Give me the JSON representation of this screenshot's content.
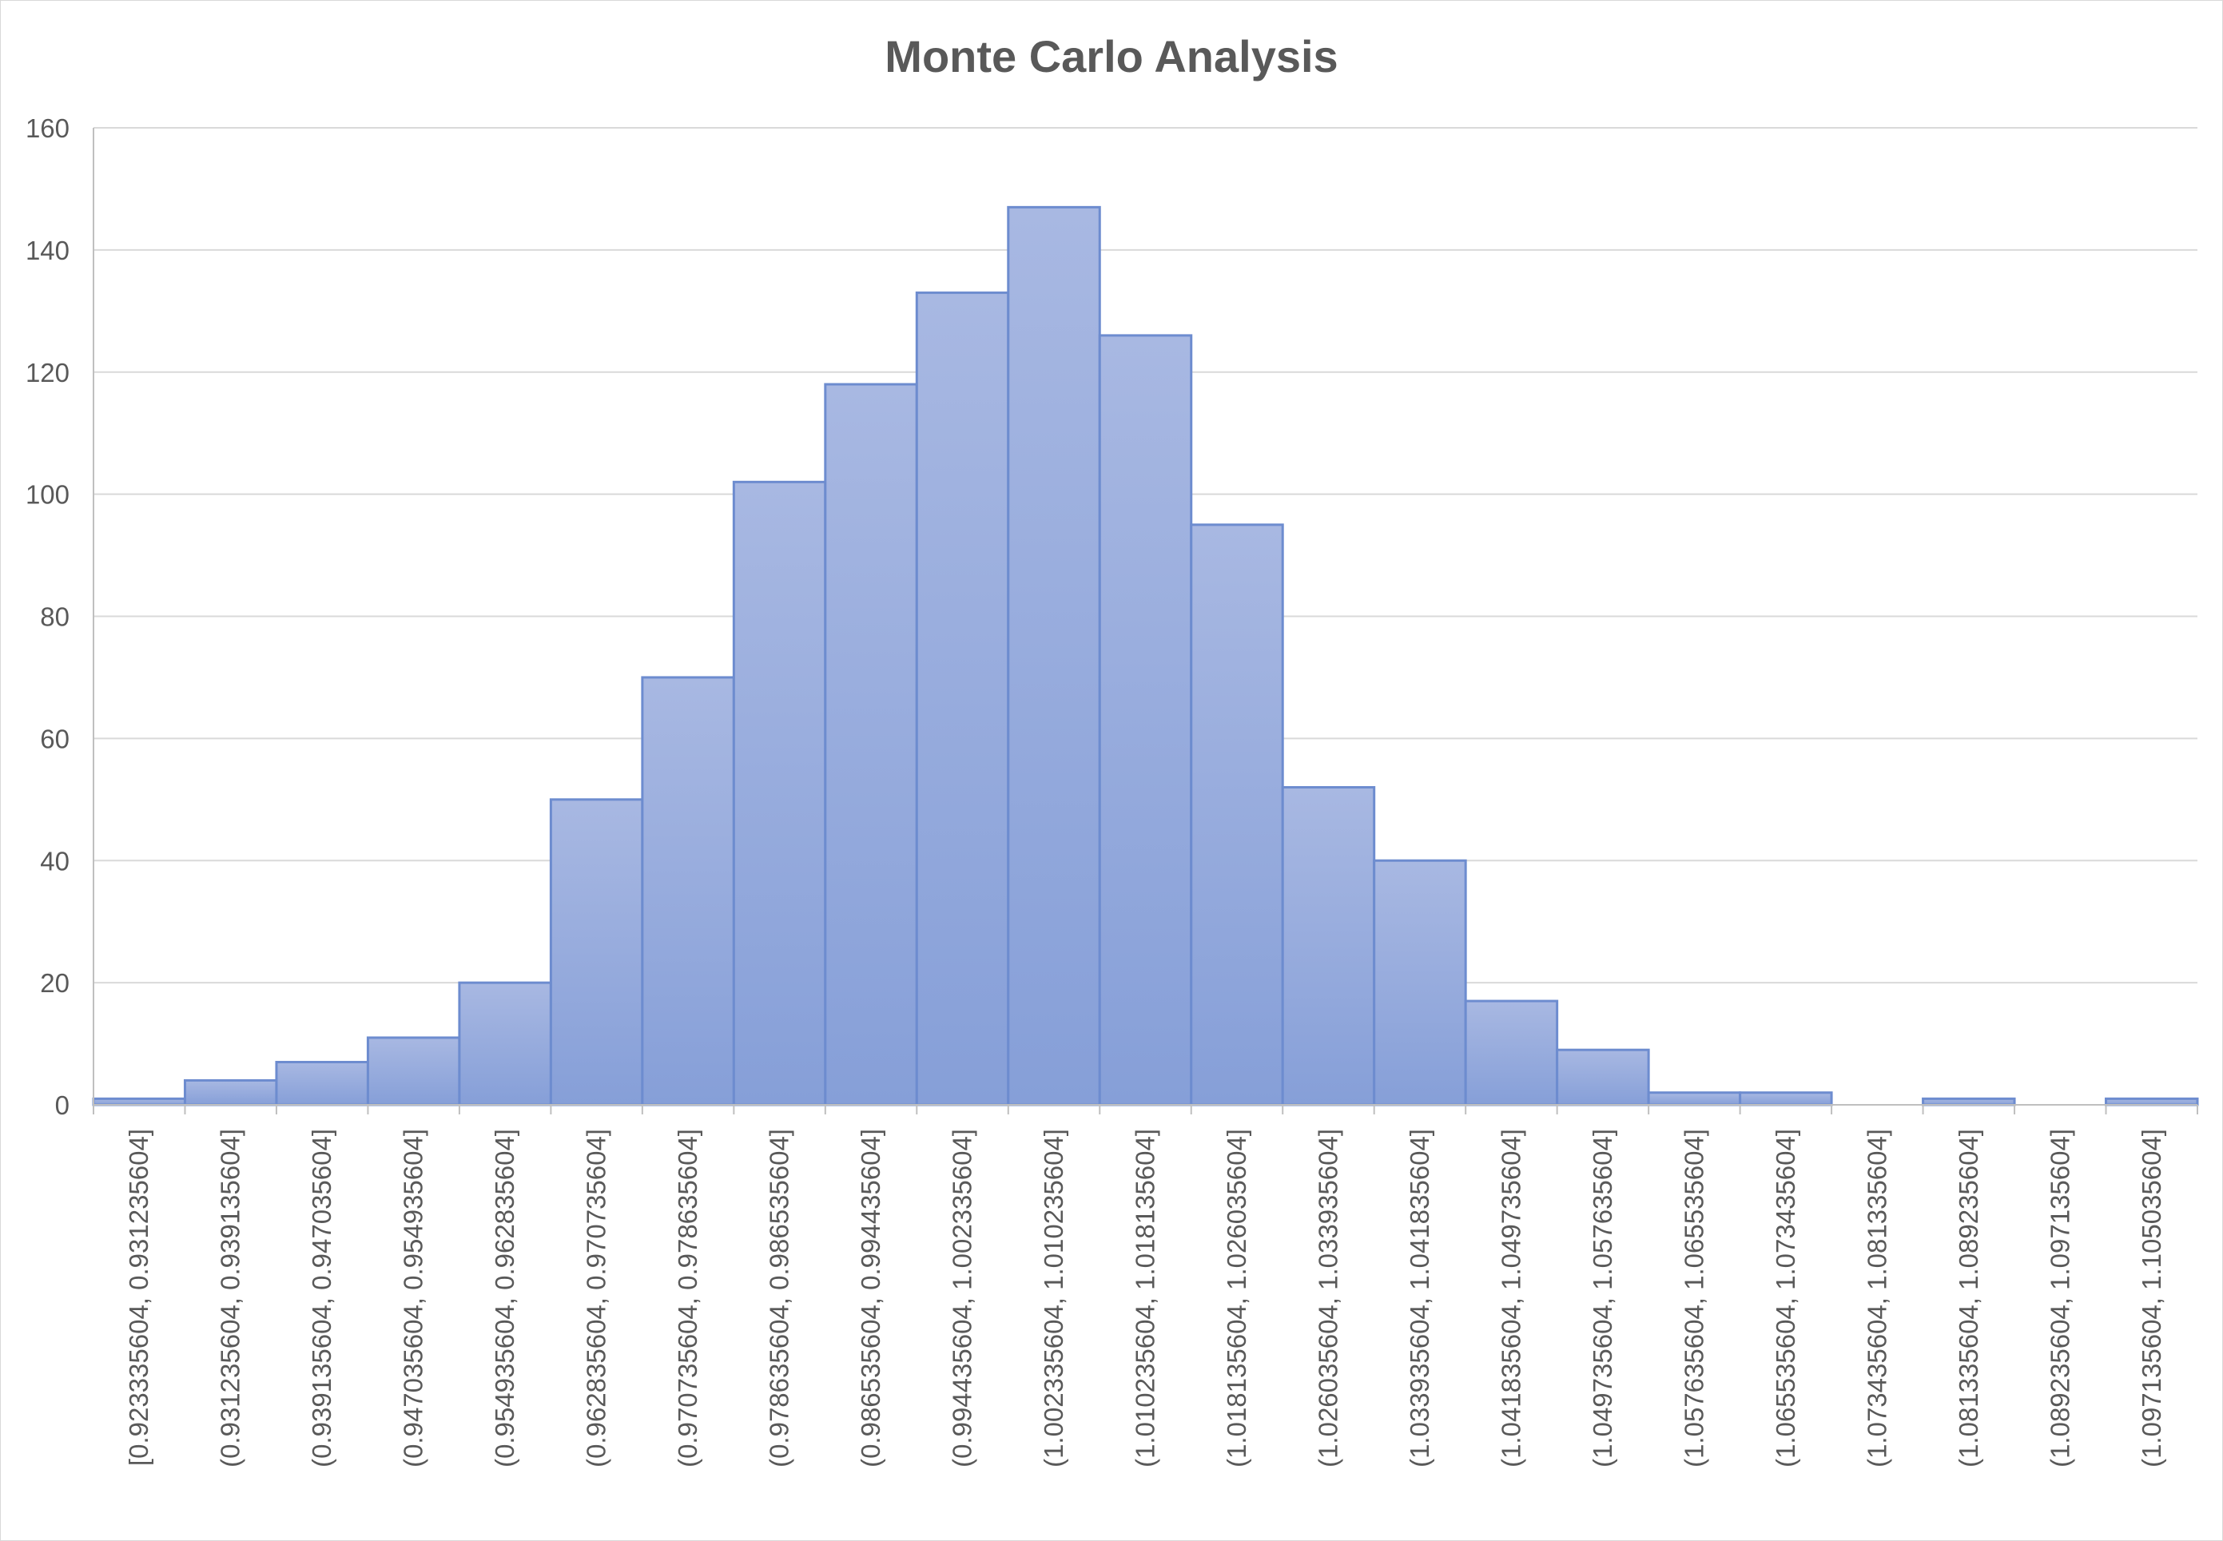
{
  "chart_data": {
    "type": "bar",
    "title": "Monte Carlo Analysis",
    "xlabel": "",
    "ylabel": "",
    "ylim": [
      0,
      160
    ],
    "yticks": [
      "0",
      "20",
      "40",
      "60",
      "80",
      "100",
      "120",
      "140",
      "160"
    ],
    "grid": true,
    "legend": "none",
    "categories": [
      "[0.923335604, 0.931235604]",
      "(0.931235604, 0.939135604]",
      "(0.939135604, 0.947035604]",
      "(0.947035604, 0.954935604]",
      "(0.954935604, 0.962835604]",
      "(0.962835604, 0.970735604]",
      "(0.970735604, 0.978635604]",
      "(0.978635604, 0.986535604]",
      "(0.986535604, 0.994435604]",
      "(0.994435604, 1.002335604]",
      "(1.002335604, 1.010235604]",
      "(1.010235604, 1.018135604]",
      "(1.018135604, 1.026035604]",
      "(1.026035604, 1.033935604]",
      "(1.033935604, 1.041835604]",
      "(1.041835604, 1.049735604]",
      "(1.049735604, 1.057635604]",
      "(1.057635604, 1.065535604]",
      "(1.065535604, 1.073435604]",
      "(1.073435604, 1.081335604]",
      "(1.081335604, 1.089235604]",
      "(1.089235604, 1.097135604]",
      "(1.097135604, 1.105035604]"
    ],
    "values": [
      1,
      4,
      7,
      11,
      20,
      50,
      70,
      102,
      118,
      133,
      147,
      126,
      95,
      52,
      40,
      17,
      9,
      2,
      2,
      0,
      1,
      0,
      1
    ],
    "colors": {
      "bar_top": "#a8b8e2",
      "bar_bottom": "#869fd8",
      "bar_edge": "#6d8ccf",
      "grid": "#d9d9d9",
      "axis": "#bfbfbf",
      "text": "#595959"
    }
  }
}
